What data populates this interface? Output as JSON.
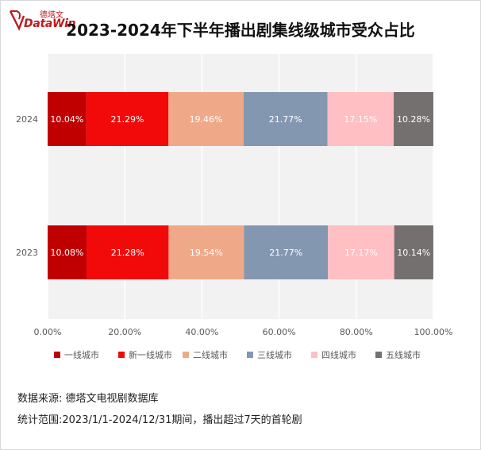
{
  "brand": {
    "logo_cn": "德塔文",
    "logo_en": "DataWin",
    "accent": "#c0191f"
  },
  "notes": {
    "source": "数据来源: 德塔文电视剧数据库",
    "scope": "统计范围:2023/1/1-2024/12/31期间，播出超过7天的首轮剧"
  },
  "chart_data": {
    "type": "bar",
    "orientation": "horizontal",
    "stacked": true,
    "title": "2023-2024年下半年播出剧集线级城市受众占比",
    "categories": [
      "2024",
      "2023"
    ],
    "series": [
      {
        "name": "一线城市",
        "color": "#c00000",
        "values": [
          10.04,
          10.08
        ],
        "labels": [
          "10.04%",
          "10.08%"
        ]
      },
      {
        "name": "新一线城市",
        "color": "#f20a0a",
        "values": [
          21.29,
          21.28
        ],
        "labels": [
          "21.29%",
          "21.28%"
        ]
      },
      {
        "name": "二线城市",
        "color": "#f0a988",
        "values": [
          19.46,
          19.54
        ],
        "labels": [
          "19.46%",
          "19.54%"
        ]
      },
      {
        "name": "三线城市",
        "color": "#8497b0",
        "values": [
          21.77,
          21.77
        ],
        "labels": [
          "21.77%",
          "21.77%"
        ]
      },
      {
        "name": "四线城市",
        "color": "#ffbfc3",
        "values": [
          17.15,
          17.17
        ],
        "labels": [
          "17.15%",
          "17.17%"
        ]
      },
      {
        "name": "五线城市",
        "color": "#757070",
        "values": [
          10.28,
          10.14
        ],
        "labels": [
          "10.28%",
          "10.14%"
        ]
      }
    ],
    "xlim": [
      0,
      100
    ],
    "xticks": [
      "0.00%",
      "20.00%",
      "40.00%",
      "60.00%",
      "80.00%",
      "100.00%"
    ],
    "grid": true,
    "legend": "bottom"
  }
}
